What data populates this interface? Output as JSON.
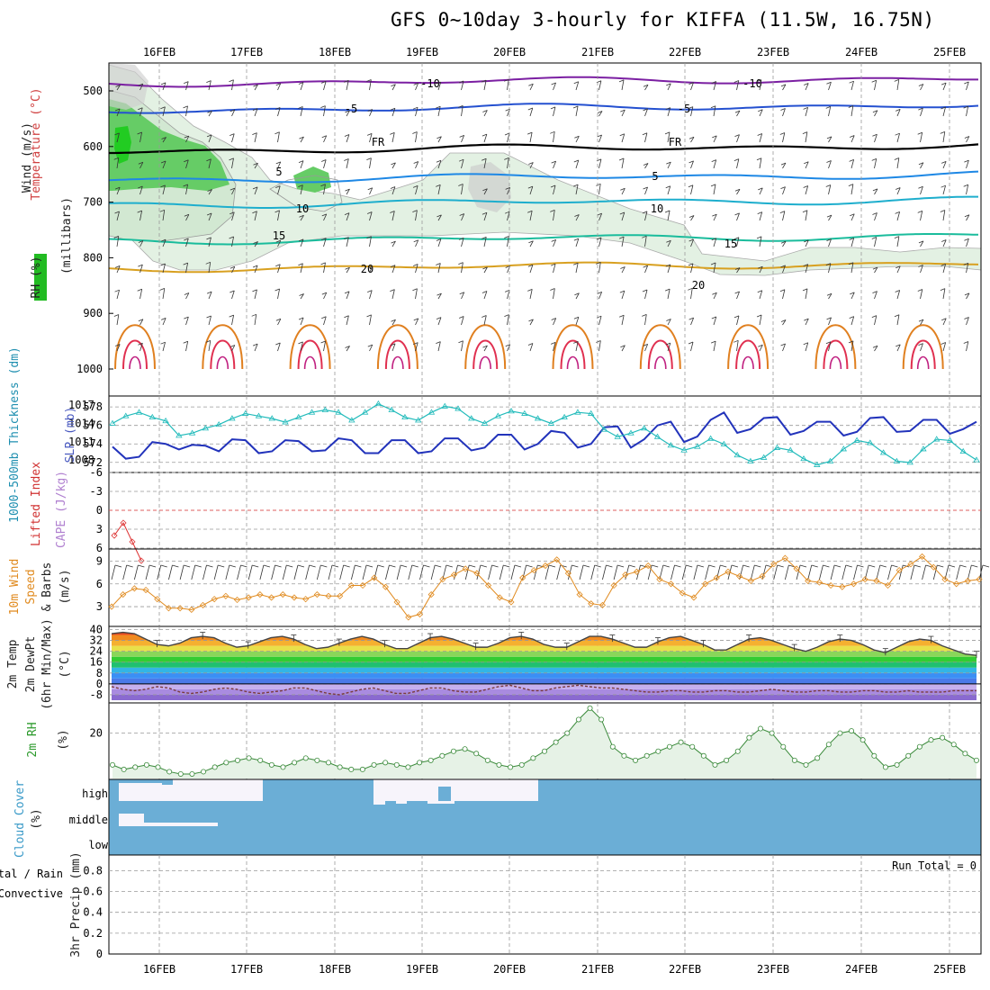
{
  "title": "GFS 0~10day 3-hourly for KIFFA (11.5W, 16.75N)",
  "dates": [
    "16FEB",
    "17FEB",
    "18FEB",
    "19FEB",
    "20FEB",
    "21FEB",
    "22FEB",
    "23FEB",
    "24FEB",
    "25FEB"
  ],
  "chart_data": [
    {
      "type": "heatmap",
      "panel": "upper-air",
      "labels": {
        "rh": "RH (%)",
        "temp": "Temperature (°C)",
        "wind": "Wind (m/s)",
        "mb": "(millibars)"
      },
      "pressure_ticks": [
        500,
        600,
        700,
        800,
        900,
        1000
      ],
      "ylim": [
        450,
        1050
      ],
      "isotherms": [
        {
          "t": "-10",
          "p": 97
        },
        {
          "t": "-5",
          "p": 535
        },
        {
          "t": "FR",
          "p": 608
        },
        {
          "t": "5",
          "p": 660
        },
        {
          "t": "10",
          "p": 705
        },
        {
          "t": "15",
          "p": 770
        },
        {
          "t": "20",
          "p": 820
        }
      ],
      "colors": {
        "rh_high": "#22bb22",
        "rh_mid": "#66cc66",
        "rh_low": "#d6ecd6"
      }
    },
    {
      "type": "line",
      "panel": "thickness-slp",
      "ylabel_left": "1000-500mb Thickness (dm)",
      "ylabel_right": "SLP (mb)",
      "left_ticks": [
        572,
        574,
        576,
        578
      ],
      "right_ticks": [
        1008,
        1011,
        1014,
        1017
      ],
      "series": [
        {
          "name": "Thickness",
          "color": "#2233bb",
          "values": [
            573.7,
            572.4,
            572.6,
            574.2,
            574.0,
            573.4,
            573.9,
            573.8,
            573.2,
            574.5,
            574.4,
            573.0,
            573.2,
            574.4,
            574.3,
            573.2,
            573.3,
            574.6,
            574.4,
            573.0,
            573.0,
            574.4,
            574.4,
            573.0,
            573.2,
            574.6,
            574.6,
            573.3,
            573.6,
            575.0,
            575.0,
            573.4,
            574.0,
            575.4,
            575.2,
            573.6,
            574.0,
            575.8,
            575.9,
            573.6,
            574.5,
            576.0,
            576.4,
            574.2,
            574.8,
            576.6,
            577.4,
            575.2,
            575.6,
            576.8,
            576.9,
            575.0,
            575.4,
            576.4,
            576.4,
            574.9,
            575.3,
            576.8,
            576.9,
            575.3,
            575.4,
            576.6,
            576.6,
            575.1,
            575.6,
            576.4
          ]
        },
        {
          "name": "SLP",
          "color": "#22bbbb",
          "values": [
            1014.0,
            1015.2,
            1015.8,
            1015.0,
            1014.4,
            1012.0,
            1012.4,
            1013.2,
            1013.8,
            1014.8,
            1015.6,
            1015.2,
            1014.8,
            1014.2,
            1015.0,
            1015.8,
            1016.2,
            1015.8,
            1014.5,
            1015.8,
            1017.2,
            1016.2,
            1015.0,
            1014.5,
            1015.8,
            1016.8,
            1016.4,
            1014.8,
            1014.0,
            1015.2,
            1016.0,
            1015.6,
            1014.8,
            1014.0,
            1015.0,
            1015.8,
            1015.6,
            1013.0,
            1011.8,
            1012.4,
            1013.2,
            1011.8,
            1010.4,
            1009.6,
            1010.2,
            1011.5,
            1010.6,
            1008.8,
            1007.8,
            1008.4,
            1010.0,
            1009.6,
            1008.2,
            1007.2,
            1007.8,
            1009.8,
            1011.2,
            1010.8,
            1009.2,
            1007.8,
            1007.6,
            1009.8,
            1011.4,
            1011.2,
            1009.4,
            1008.0
          ]
        }
      ]
    },
    {
      "type": "line",
      "panel": "cape-li",
      "ylabel": "Lifted Index",
      "ylabel_right": "CAPE (J/kg)",
      "ticks": [
        -6,
        -3,
        0,
        3,
        6
      ],
      "ticks_text": [
        "-6",
        "-3",
        "0",
        "3",
        "6"
      ],
      "series": [
        {
          "name": "Lifted Index",
          "color": "#dd3333",
          "values": [
            4.0,
            2.0,
            5.0,
            8.0
          ]
        }
      ]
    },
    {
      "type": "line",
      "panel": "wind10m",
      "ylabel": "10m Wind Speed & Barbs (m/s)",
      "ticks": [
        3,
        6,
        9
      ],
      "series": [
        {
          "name": "10m Wind Speed",
          "color": "#e08a1e",
          "values": [
            3.0,
            4.6,
            5.4,
            5.2,
            4.0,
            2.8,
            2.8,
            2.6,
            3.2,
            4.0,
            4.4,
            3.9,
            4.2,
            4.6,
            4.2,
            4.6,
            4.2,
            4.0,
            4.6,
            4.4,
            4.4,
            5.8,
            5.8,
            6.8,
            5.6,
            3.6,
            1.6,
            2.0,
            4.6,
            6.6,
            7.2,
            8.0,
            7.4,
            5.8,
            4.2,
            3.6,
            6.8,
            7.8,
            8.4,
            9.2,
            7.4,
            4.6,
            3.4,
            3.2,
            5.8,
            7.2,
            7.6,
            8.4,
            6.6,
            6.0,
            4.8,
            4.2,
            6.0,
            6.8,
            7.6,
            7.0,
            6.4,
            7.0,
            8.6,
            9.4,
            8.0,
            6.4,
            6.2,
            5.8,
            5.6,
            6.0,
            6.6,
            6.4,
            5.8,
            7.8,
            8.6,
            9.6,
            8.2,
            6.6,
            6.0,
            6.4,
            6.6
          ]
        }
      ]
    },
    {
      "type": "area",
      "panel": "temp2m",
      "ylabel": "2m Temp 2m DewPt (6hr Min/Max) (°C)",
      "ticks": [
        -8,
        0,
        8,
        16,
        24,
        32,
        40
      ],
      "series": [
        {
          "name": "2m Temp",
          "color": "#444444",
          "values": [
            37,
            38,
            37,
            33,
            29,
            28,
            30,
            34,
            35,
            34,
            30,
            27,
            28,
            31,
            34,
            35,
            33,
            29,
            26,
            27,
            30,
            33,
            35,
            33,
            29,
            26,
            26,
            30,
            34,
            35,
            33,
            30,
            27,
            27,
            30,
            34,
            35,
            33,
            29,
            27,
            27,
            31,
            35,
            35,
            33,
            30,
            27,
            27,
            31,
            34,
            35,
            32,
            29,
            25,
            25,
            29,
            33,
            34,
            32,
            29,
            26,
            24,
            27,
            31,
            33,
            32,
            29,
            25,
            23,
            27,
            31,
            33,
            32,
            28,
            25,
            22,
            21
          ]
        },
        {
          "name": "2m DewPt",
          "color": "#7a3b3b",
          "values": [
            -2,
            -4,
            -5,
            -4,
            -2,
            -3,
            -6,
            -7,
            -6,
            -4,
            -3,
            -4,
            -6,
            -7,
            -6,
            -5,
            -3,
            -3,
            -5,
            -7,
            -8,
            -6,
            -4,
            -3,
            -5,
            -7,
            -7,
            -5,
            -3,
            -3,
            -5,
            -6,
            -6,
            -4,
            -2,
            -1,
            -3,
            -5,
            -5,
            -3,
            -2,
            -1,
            -2,
            -3,
            -3,
            -4,
            -5,
            -6,
            -6,
            -5,
            -5,
            -6,
            -6,
            -5,
            -5,
            -6,
            -6,
            -5,
            -4,
            -5,
            -6,
            -6,
            -5,
            -5,
            -6,
            -6,
            -5,
            -5,
            -6,
            -6,
            -5,
            -6,
            -6,
            -6,
            -5,
            -5,
            -5
          ]
        }
      ]
    },
    {
      "type": "area",
      "panel": "rh2m",
      "ylabel": "2m RH (%)",
      "ticks": [
        20
      ],
      "series": [
        {
          "name": "2m RH",
          "color": "#3a8a3a",
          "values": [
            6,
            4,
            5,
            6,
            5,
            3,
            2,
            2,
            3,
            5,
            7,
            8,
            9,
            8,
            6,
            5,
            7,
            9,
            8,
            7,
            5,
            4,
            4,
            6,
            7,
            6,
            5,
            7,
            8,
            10,
            12,
            13,
            11,
            8,
            6,
            5,
            6,
            9,
            12,
            16,
            20,
            26,
            31,
            26,
            14,
            10,
            8,
            10,
            12,
            14,
            16,
            14,
            10,
            6,
            8,
            12,
            18,
            22,
            20,
            14,
            8,
            6,
            9,
            15,
            20,
            21,
            17,
            10,
            5,
            6,
            10,
            14,
            17,
            18,
            15,
            11,
            8
          ]
        }
      ]
    },
    {
      "type": "heatmap",
      "panel": "cloud",
      "ylabel": "Cloud Cover (%)",
      "layers": [
        "high",
        "middle",
        "low"
      ],
      "colors": {
        "cover": "#6baed6",
        "clear": "#f7f4fb"
      }
    },
    {
      "type": "bar",
      "panel": "precip",
      "ylabel": "3hr Precip (mm)",
      "left_label_1": "Total / Rain",
      "left_label_2": "Convective",
      "ticks": [
        0,
        0.2,
        0.4,
        0.6,
        0.8
      ],
      "ticks_text": [
        "0",
        "0.2",
        "0.4",
        "0.6",
        "0.8"
      ],
      "ylim": [
        0,
        0.95
      ],
      "run_total": "Run Total = 0",
      "values": []
    }
  ]
}
